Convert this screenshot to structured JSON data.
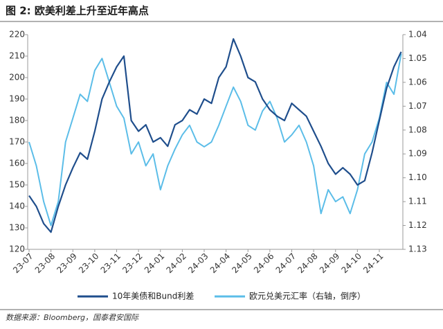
{
  "chart_data": {
    "type": "line",
    "title": "图 2: 欧美利差上升至近年高点",
    "source": "数据来源：Bloomberg，国泰君安国际",
    "categories": [
      "23-07",
      null,
      null,
      "23-08",
      null,
      null,
      "23-09",
      null,
      null,
      "23-10",
      null,
      null,
      "23-11",
      null,
      null,
      "23-12",
      null,
      null,
      "24-01",
      null,
      null,
      "24-02",
      null,
      null,
      "24-03",
      null,
      null,
      "24-04",
      null,
      null,
      "24-05",
      null,
      null,
      "24-06",
      null,
      null,
      "24-07",
      null,
      null,
      "24-08",
      null,
      null,
      "24-09",
      null,
      null,
      "24-10",
      null,
      null,
      "24-11",
      null,
      null,
      null
    ],
    "series": [
      {
        "name": "10年美债和Bund利差",
        "color": "#1f4e8c",
        "values": [
          145,
          140,
          132,
          128,
          140,
          150,
          158,
          165,
          162,
          175,
          190,
          198,
          205,
          210,
          180,
          175,
          178,
          170,
          172,
          168,
          178,
          180,
          185,
          183,
          190,
          188,
          200,
          205,
          218,
          210,
          200,
          198,
          190,
          185,
          182,
          180,
          188,
          185,
          182,
          175,
          168,
          160,
          155,
          158,
          155,
          150,
          152,
          165,
          180,
          195,
          205,
          212
        ]
      },
      {
        "name": "欧元兑美元汇率（右轴，倒序）",
        "color": "#5bbde8",
        "axis": "y2",
        "values": [
          1.085,
          1.095,
          1.11,
          1.12,
          1.11,
          1.085,
          1.075,
          1.065,
          1.068,
          1.055,
          1.05,
          1.06,
          1.07,
          1.075,
          1.09,
          1.085,
          1.095,
          1.09,
          1.105,
          1.095,
          1.088,
          1.082,
          1.078,
          1.085,
          1.087,
          1.085,
          1.078,
          1.07,
          1.062,
          1.068,
          1.078,
          1.08,
          1.072,
          1.068,
          1.075,
          1.085,
          1.082,
          1.078,
          1.085,
          1.095,
          1.115,
          1.105,
          1.11,
          1.108,
          1.115,
          1.105,
          1.09,
          1.085,
          1.075,
          1.06,
          1.065,
          1.048
        ]
      }
    ],
    "ylim": [
      120,
      220
    ],
    "yticks": [
      120,
      130,
      140,
      150,
      160,
      170,
      180,
      190,
      200,
      210,
      220
    ],
    "y2lim": [
      1.04,
      1.13
    ],
    "y2_inverted": true,
    "y2ticks": [
      1.04,
      1.05,
      1.06,
      1.07,
      1.08,
      1.09,
      {
        "value": 1.1,
        "label": "1.10"
      },
      1.11,
      1.12,
      1.13
    ],
    "grid": false
  }
}
